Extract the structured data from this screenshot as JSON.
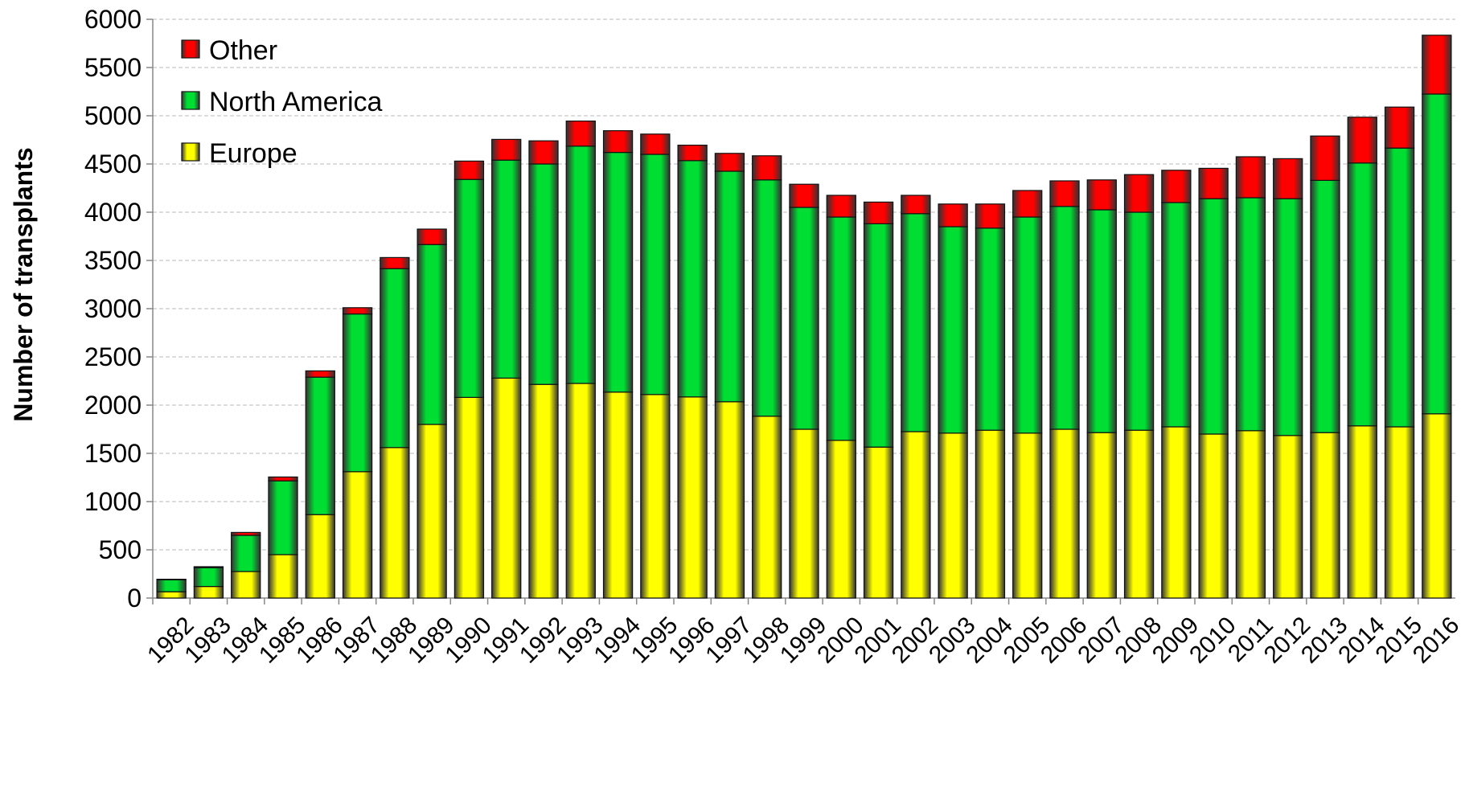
{
  "chart_data": {
    "type": "stacked_bar",
    "y_label": "Number of transplants",
    "categories": [
      "1982",
      "1983",
      "1984",
      "1985",
      "1986",
      "1987",
      "1988",
      "1989",
      "1990",
      "1991",
      "1992",
      "1993",
      "1994",
      "1995",
      "1996",
      "1997",
      "1998",
      "1999",
      "2000",
      "2001",
      "2002",
      "2003",
      "2004",
      "2005",
      "2006",
      "2007",
      "2008",
      "2009",
      "2010",
      "2011",
      "2012",
      "2013",
      "2014",
      "2015",
      "2016"
    ],
    "series": [
      {
        "name": "Europe",
        "color": "#ffff00",
        "values": [
          65,
          120,
          275,
          450,
          865,
          1310,
          1560,
          1800,
          2080,
          2280,
          2215,
          2225,
          2135,
          2110,
          2085,
          2035,
          1885,
          1750,
          1635,
          1565,
          1725,
          1710,
          1740,
          1710,
          1750,
          1715,
          1740,
          1775,
          1700,
          1735,
          1685,
          1715,
          1785,
          1775,
          1910
        ]
      },
      {
        "name": "North America",
        "color": "#00dd33",
        "values": [
          125,
          195,
          375,
          765,
          1425,
          1635,
          1855,
          1865,
          2260,
          2260,
          2285,
          2460,
          2485,
          2490,
          2450,
          2390,
          2450,
          2300,
          2315,
          2315,
          2260,
          2140,
          2095,
          2240,
          2310,
          2310,
          2260,
          2325,
          2440,
          2415,
          2455,
          2615,
          2725,
          2890,
          3315
        ]
      },
      {
        "name": "Other",
        "color": "#ff0000",
        "values": [
          5,
          10,
          30,
          40,
          65,
          65,
          115,
          160,
          190,
          215,
          240,
          260,
          225,
          210,
          160,
          185,
          250,
          240,
          225,
          225,
          190,
          235,
          250,
          275,
          265,
          310,
          390,
          335,
          315,
          425,
          415,
          460,
          475,
          425,
          610
        ]
      }
    ],
    "ylim": [
      0,
      6000
    ],
    "yticks": [
      0,
      500,
      1000,
      1500,
      2000,
      2500,
      3000,
      3500,
      4000,
      4500,
      5000,
      5500,
      6000
    ],
    "grid": true,
    "legend": "top-left"
  }
}
